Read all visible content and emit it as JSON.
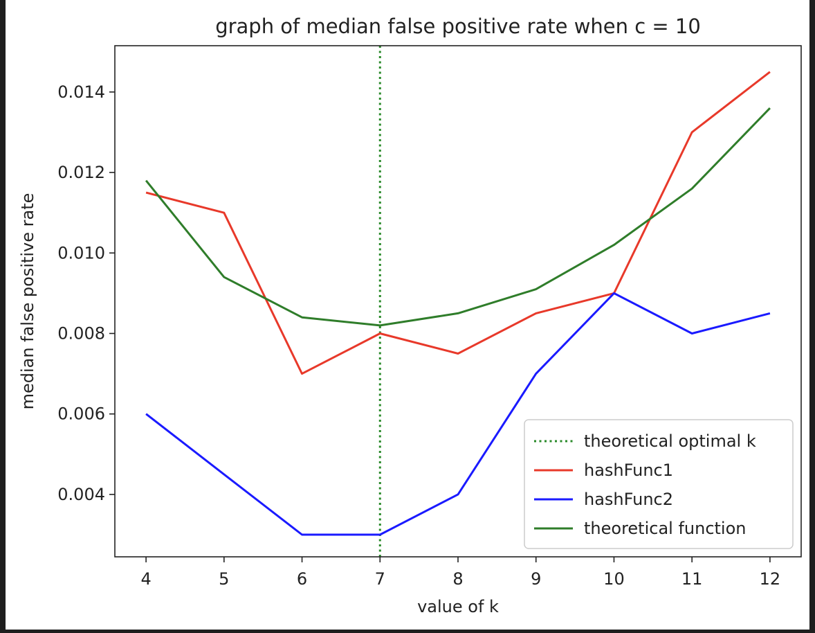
{
  "chart_data": {
    "type": "line",
    "title": "graph of median false positive rate when c = 10",
    "xlabel": "value of k",
    "ylabel": "median false positive rate",
    "x": [
      4,
      5,
      6,
      7,
      8,
      9,
      10,
      11,
      12
    ],
    "xlim": [
      3.6,
      12.4
    ],
    "ylim": [
      0.00245,
      0.01515
    ],
    "xticks": [
      4,
      5,
      6,
      7,
      8,
      9,
      10,
      11,
      12
    ],
    "yticks": [
      0.004,
      0.006,
      0.008,
      0.01,
      0.012,
      0.014
    ],
    "ytick_labels": [
      "0.004",
      "0.006",
      "0.008",
      "0.010",
      "0.012",
      "0.014"
    ],
    "grid": false,
    "legend_position": "lower-right",
    "vline": {
      "name": "theoretical optimal k",
      "x": 7,
      "color": "#2a8a2a",
      "style": "dotted"
    },
    "series": [
      {
        "name": "hashFunc1",
        "color": "#e8392a",
        "values": [
          0.0115,
          0.011,
          0.007,
          0.008,
          0.0075,
          0.0085,
          0.009,
          0.013,
          0.0145
        ]
      },
      {
        "name": "hashFunc2",
        "color": "#1a1aff",
        "values": [
          0.006,
          0.0045,
          0.003,
          0.003,
          0.004,
          0.007,
          0.009,
          0.008,
          0.0085
        ]
      },
      {
        "name": "theoretical function",
        "color": "#2f7d2a",
        "values": [
          0.0118,
          0.0094,
          0.0084,
          0.0082,
          0.0085,
          0.0091,
          0.0102,
          0.0116,
          0.0136
        ]
      }
    ]
  }
}
